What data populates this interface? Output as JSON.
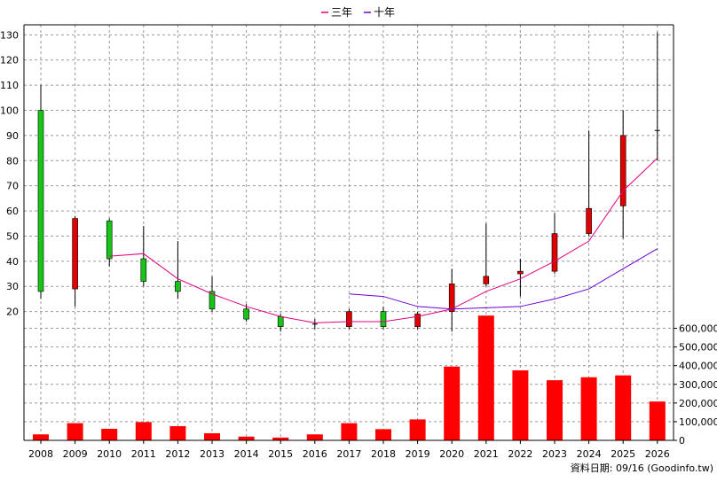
{
  "legend": [
    {
      "name": "三年",
      "color": "#e0007f"
    },
    {
      "name": "十年",
      "color": "#6a00d8"
    }
  ],
  "footer_text": "資料日期: 09/16 (Goodinfo.tw)",
  "colors": {
    "up": "#e00000",
    "down": "#19c419",
    "volume": "#ff0000",
    "grid": "#999999",
    "frame": "#000000"
  },
  "chart_data": [
    {
      "type": "candlestick",
      "categories": [
        "2008",
        "2009",
        "2010",
        "2011",
        "2012",
        "2013",
        "2014",
        "2015",
        "2016",
        "2017",
        "2018",
        "2019",
        "2020",
        "2021",
        "2022",
        "2023",
        "2024",
        "2025",
        "2026"
      ],
      "ylim": [
        10,
        134
      ],
      "yticks": [
        20,
        30,
        40,
        50,
        60,
        70,
        80,
        90,
        100,
        110,
        120,
        130
      ],
      "grid": true,
      "legend_position": "top-center",
      "ohlc": [
        {
          "open": 100,
          "high": 110,
          "low": 25,
          "close": 28
        },
        {
          "open": 29,
          "high": 58,
          "low": 22,
          "close": 57
        },
        {
          "open": 56,
          "high": 57,
          "low": 38,
          "close": 41
        },
        {
          "open": 41,
          "high": 54,
          "low": 30,
          "close": 32
        },
        {
          "open": 32,
          "high": 48,
          "low": 25,
          "close": 28
        },
        {
          "open": 28,
          "high": 34,
          "low": 20,
          "close": 21
        },
        {
          "open": 21,
          "high": 23,
          "low": 16,
          "close": 17
        },
        {
          "open": 18,
          "high": 19,
          "low": 12,
          "close": 14
        },
        {
          "open": 15,
          "high": 17,
          "low": 13,
          "close": 14.5
        },
        {
          "open": 14,
          "high": 21,
          "low": 13,
          "close": 20
        },
        {
          "open": 20,
          "high": 22,
          "low": 13,
          "close": 14
        },
        {
          "open": 14,
          "high": 20,
          "low": 13,
          "close": 19
        },
        {
          "open": 20,
          "high": 37,
          "low": 12,
          "close": 31
        },
        {
          "open": 31,
          "high": 55,
          "low": 30,
          "close": 34
        },
        {
          "open": 35,
          "high": 41,
          "low": 26,
          "close": 36
        },
        {
          "open": 36,
          "high": 59,
          "low": 35,
          "close": 51
        },
        {
          "open": 51,
          "high": 92,
          "low": 50,
          "close": 61
        },
        {
          "open": 62,
          "high": 100,
          "low": 49,
          "close": 90
        },
        {
          "open": 92,
          "high": 131,
          "low": 80,
          "close": 92
        }
      ],
      "series": [
        {
          "name": "三年",
          "values": [
            null,
            null,
            42,
            43,
            33,
            27,
            22,
            18,
            15.5,
            16,
            16,
            18,
            21,
            28,
            33,
            40,
            48,
            68,
            81
          ]
        },
        {
          "name": "十年",
          "values": [
            null,
            null,
            null,
            null,
            null,
            null,
            null,
            null,
            null,
            27,
            26,
            22,
            21,
            21.5,
            22,
            25,
            29,
            37,
            45
          ]
        }
      ]
    },
    {
      "type": "bar",
      "categories": [
        "2008",
        "2009",
        "2010",
        "2011",
        "2012",
        "2013",
        "2014",
        "2015",
        "2016",
        "2017",
        "2018",
        "2019",
        "2020",
        "2021",
        "2022",
        "2023",
        "2024",
        "2025",
        "2026"
      ],
      "values": [
        32000,
        92000,
        62000,
        98000,
        76000,
        38000,
        20000,
        15000,
        32000,
        92000,
        60000,
        112000,
        395000,
        668000,
        375000,
        322000,
        338000,
        348000,
        208000
      ],
      "ylim": [
        0,
        650000
      ],
      "yticks": [
        "0",
        "100,000",
        "200,000",
        "300,000",
        "400,000",
        "500,000",
        "600,000"
      ],
      "grid": true
    }
  ]
}
